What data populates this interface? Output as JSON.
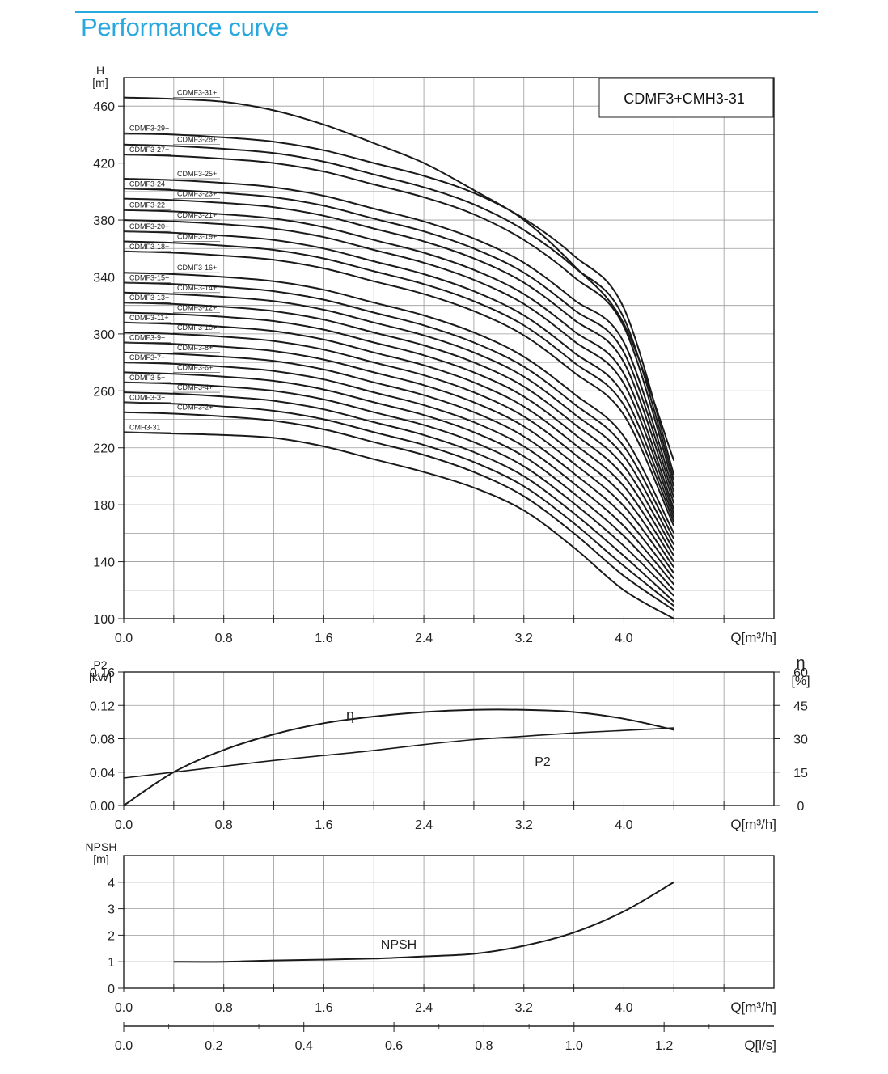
{
  "page": {
    "title": "Performance curve",
    "accent_color": "#29a8df"
  },
  "chart_data": [
    {
      "type": "line",
      "panel": "head",
      "title": "CDMF3+CMH3-31",
      "ylabel": "H",
      "yunit": "[m]",
      "xlabel": "Q[m³/h]",
      "xlim": [
        0,
        5.2
      ],
      "ylim": [
        100,
        480
      ],
      "xticks": [
        "0.0",
        "0.8",
        "1.6",
        "2.4",
        "3.2",
        "4.0"
      ],
      "yticks": [
        "100",
        "140",
        "180",
        "220",
        "260",
        "300",
        "340",
        "380",
        "420",
        "460"
      ],
      "grid": true,
      "x": [
        0,
        0.4,
        0.8,
        1.2,
        1.6,
        2.0,
        2.4,
        2.8,
        3.2,
        3.6,
        4.0,
        4.4
      ],
      "series": [
        {
          "name": "CMH3-31",
          "values": [
            231,
            230,
            229,
            227,
            221,
            212,
            203,
            192,
            176,
            150,
            120,
            100
          ]
        },
        {
          "name": "CDMF3-2+",
          "values": [
            245,
            244,
            242,
            239,
            233,
            224,
            215,
            203,
            186,
            160,
            130,
            106
          ]
        },
        {
          "name": "CDMF3-3+",
          "values": [
            252,
            251,
            249,
            246,
            240,
            231,
            222,
            210,
            193,
            167,
            137,
            109
          ]
        },
        {
          "name": "CDMF3-4+",
          "values": [
            259,
            258,
            256,
            253,
            247,
            238,
            229,
            217,
            200,
            174,
            144,
            112
          ]
        },
        {
          "name": "CDMF3-5+",
          "values": [
            266,
            265,
            263,
            260,
            254,
            245,
            236,
            224,
            207,
            181,
            151,
            116
          ]
        },
        {
          "name": "CDMF3-6+",
          "values": [
            273,
            272,
            270,
            267,
            261,
            252,
            243,
            231,
            214,
            188,
            158,
            120
          ]
        },
        {
          "name": "CDMF3-7+",
          "values": [
            280,
            279,
            277,
            274,
            268,
            259,
            250,
            238,
            221,
            195,
            165,
            124
          ]
        },
        {
          "name": "CDMF3-8+",
          "values": [
            287,
            286,
            284,
            281,
            275,
            266,
            257,
            245,
            228,
            202,
            172,
            128
          ]
        },
        {
          "name": "CDMF3-9+",
          "values": [
            294,
            293,
            291,
            288,
            282,
            273,
            264,
            252,
            235,
            209,
            179,
            132
          ]
        },
        {
          "name": "CDMF3-10+",
          "values": [
            301,
            300,
            298,
            295,
            289,
            280,
            271,
            259,
            242,
            216,
            186,
            136
          ]
        },
        {
          "name": "CDMF3-11+",
          "values": [
            308,
            307,
            305,
            302,
            296,
            287,
            278,
            266,
            249,
            223,
            193,
            140
          ]
        },
        {
          "name": "CDMF3-12+",
          "values": [
            315,
            314,
            312,
            309,
            303,
            294,
            285,
            273,
            256,
            230,
            200,
            144
          ]
        },
        {
          "name": "CDMF3-13+",
          "values": [
            322,
            321,
            319,
            316,
            310,
            301,
            292,
            280,
            263,
            237,
            207,
            148
          ]
        },
        {
          "name": "CDMF3-14+",
          "values": [
            329,
            328,
            326,
            323,
            317,
            308,
            299,
            287,
            270,
            244,
            214,
            152
          ]
        },
        {
          "name": "CDMF3-15+",
          "values": [
            336,
            335,
            333,
            330,
            324,
            315,
            306,
            294,
            277,
            251,
            221,
            156
          ]
        },
        {
          "name": "CDMF3-16+",
          "values": [
            343,
            342,
            340,
            337,
            331,
            322,
            313,
            301,
            284,
            258,
            228,
            160
          ]
        },
        {
          "name": "CDMF3-18+",
          "values": [
            358,
            357,
            355,
            352,
            346,
            337,
            328,
            316,
            299,
            273,
            243,
            165
          ]
        },
        {
          "name": "CDMF3-19+",
          "values": [
            365,
            364,
            362,
            359,
            353,
            344,
            335,
            323,
            306,
            280,
            250,
            168
          ]
        },
        {
          "name": "CDMF3-20+",
          "values": [
            372,
            371,
            369,
            366,
            360,
            351,
            342,
            330,
            313,
            287,
            257,
            171
          ]
        },
        {
          "name": "CDMF3-21+",
          "values": [
            380,
            379,
            377,
            374,
            368,
            359,
            350,
            338,
            321,
            295,
            265,
            174
          ]
        },
        {
          "name": "CDMF3-22+",
          "values": [
            387,
            386,
            384,
            381,
            375,
            366,
            357,
            345,
            328,
            302,
            272,
            177
          ]
        },
        {
          "name": "CDMF3-23+",
          "values": [
            395,
            394,
            392,
            389,
            383,
            374,
            365,
            353,
            336,
            310,
            280,
            181
          ]
        },
        {
          "name": "CDMF3-24+",
          "values": [
            402,
            401,
            399,
            396,
            390,
            381,
            372,
            360,
            343,
            317,
            287,
            185
          ]
        },
        {
          "name": "CDMF3-25+",
          "values": [
            409,
            408,
            406,
            403,
            397,
            388,
            379,
            367,
            350,
            324,
            294,
            189
          ]
        },
        {
          "name": "CDMF3-27+",
          "values": [
            426,
            425,
            423,
            420,
            414,
            405,
            396,
            384,
            366,
            340,
            305,
            193
          ]
        },
        {
          "name": "CDMF3-28+",
          "values": [
            433,
            432,
            430,
            427,
            421,
            412,
            403,
            391,
            373,
            347,
            311,
            197
          ]
        },
        {
          "name": "CDMF3-29+",
          "values": [
            441,
            440,
            438,
            435,
            429,
            420,
            411,
            399,
            381,
            355,
            318,
            201
          ]
        },
        {
          "name": "CDMF3-31+",
          "values": [
            466,
            465,
            463,
            457,
            447,
            434,
            420,
            401,
            380,
            348,
            307,
            211
          ]
        }
      ]
    },
    {
      "type": "line",
      "panel": "power-efficiency",
      "ylabel": "P2",
      "yunit": "[kW]",
      "y2label": "η",
      "y2unit": "[%]",
      "xlabel": "Q[m³/h]",
      "xlim": [
        0,
        5.2
      ],
      "ylim": [
        0,
        0.16
      ],
      "y2lim": [
        0,
        60
      ],
      "xticks": [
        "0.0",
        "0.8",
        "1.6",
        "2.4",
        "3.2",
        "4.0"
      ],
      "yticks": [
        "0.00",
        "0.04",
        "0.08",
        "0.12",
        "0.16"
      ],
      "y2ticks": [
        "0",
        "15",
        "30",
        "45",
        "60"
      ],
      "grid": true,
      "series": [
        {
          "name": "η",
          "axis": "right",
          "x": [
            0,
            0.4,
            0.8,
            1.2,
            1.6,
            2.0,
            2.4,
            2.8,
            3.2,
            3.6,
            4.0,
            4.4
          ],
          "values": [
            0,
            15,
            25,
            32,
            37,
            40,
            42,
            43,
            43,
            42,
            39,
            34
          ]
        },
        {
          "name": "P2",
          "axis": "left",
          "x": [
            0,
            0.4,
            0.8,
            1.2,
            1.6,
            2.0,
            2.4,
            2.8,
            3.2,
            3.6,
            4.0,
            4.4
          ],
          "values": [
            0.033,
            0.04,
            0.047,
            0.054,
            0.06,
            0.066,
            0.073,
            0.079,
            0.083,
            0.087,
            0.09,
            0.093
          ]
        }
      ]
    },
    {
      "type": "line",
      "panel": "npsh",
      "ylabel": "NPSH",
      "yunit": "[m]",
      "xlabel": "Q[m³/h]",
      "xlim": [
        0,
        5.2
      ],
      "ylim": [
        0,
        5
      ],
      "xticks": [
        "0.0",
        "0.8",
        "1.6",
        "2.4",
        "3.2",
        "4.0"
      ],
      "yticks": [
        "0",
        "1",
        "2",
        "3",
        "4"
      ],
      "grid": true,
      "series": [
        {
          "name": "NPSH",
          "x": [
            0.4,
            0.8,
            1.2,
            1.6,
            2.0,
            2.4,
            2.8,
            3.2,
            3.6,
            4.0,
            4.4
          ],
          "values": [
            1.0,
            1.0,
            1.05,
            1.08,
            1.12,
            1.2,
            1.3,
            1.6,
            2.1,
            2.9,
            4.0
          ]
        }
      ]
    },
    {
      "type": "axis",
      "panel": "flow-ls",
      "xlabel": "Q[l/s]",
      "xlim": [
        0,
        1.444
      ],
      "xticks": [
        "0.0",
        "0.2",
        "0.4",
        "0.6",
        "0.8",
        "1.0",
        "1.2"
      ]
    }
  ]
}
